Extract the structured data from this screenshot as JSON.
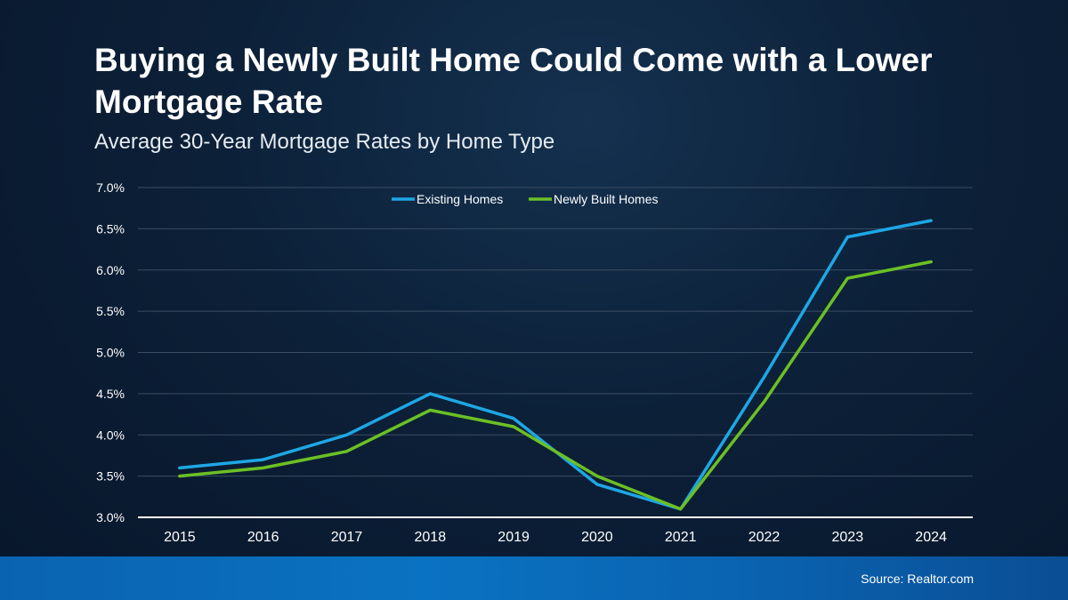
{
  "header": {
    "title": "Buying a Newly Built Home Could Come with a Lower Mortgage Rate",
    "subtitle": "Average 30-Year Mortgage Rates by Home Type"
  },
  "footer": {
    "source": "Source: Realtor.com"
  },
  "chart_data": {
    "type": "line",
    "title": "",
    "xlabel": "",
    "ylabel": "",
    "categories": [
      "2015",
      "2016",
      "2017",
      "2018",
      "2019",
      "2020",
      "2021",
      "2022",
      "2023",
      "2024"
    ],
    "series": [
      {
        "name": "Existing Homes",
        "color": "#1ea7e4",
        "values": [
          3.6,
          3.7,
          4.0,
          4.5,
          4.2,
          3.4,
          3.1,
          4.7,
          6.4,
          6.6
        ]
      },
      {
        "name": "Newly Built Homes",
        "color": "#6cc024",
        "values": [
          3.5,
          3.6,
          3.8,
          4.3,
          4.1,
          3.5,
          3.1,
          4.4,
          5.9,
          6.1
        ]
      }
    ],
    "ylim": [
      3.0,
      7.0
    ],
    "yticks": [
      "3.0%",
      "3.5%",
      "4.0%",
      "4.5%",
      "5.0%",
      "5.5%",
      "6.0%",
      "6.5%",
      "7.0%"
    ],
    "grid": true,
    "legend_position": "top-center"
  }
}
